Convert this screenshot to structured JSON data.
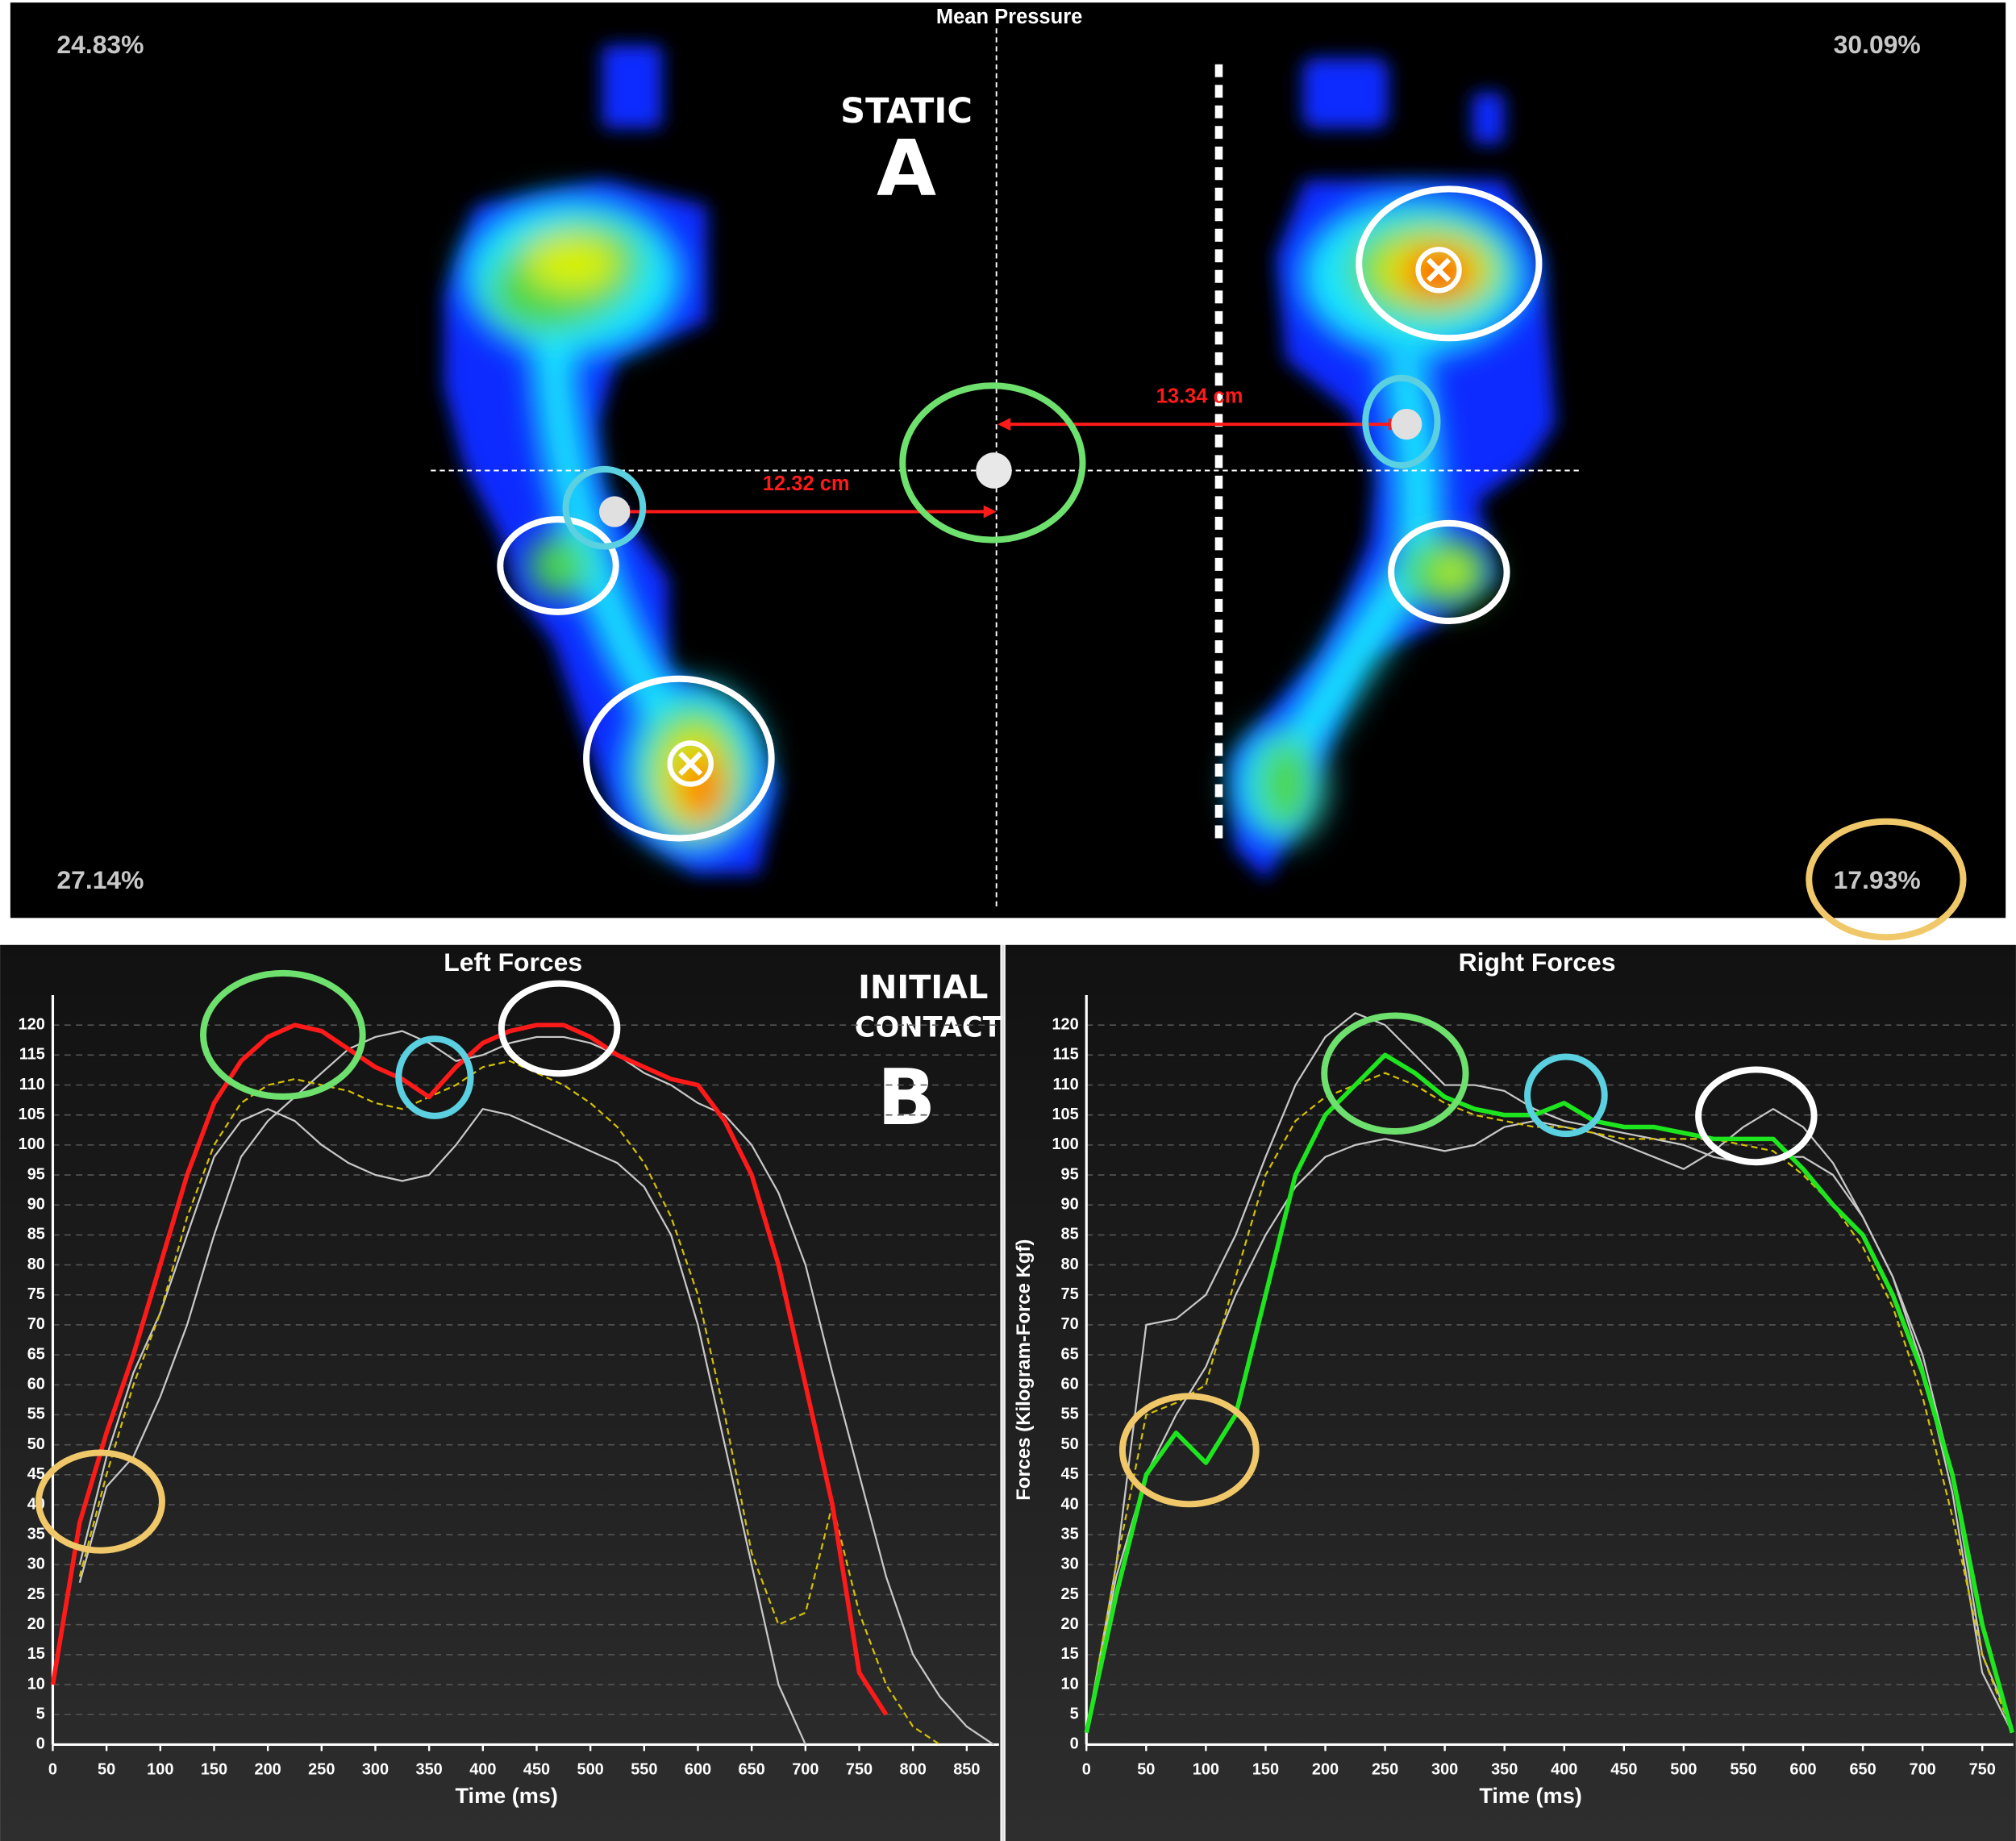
{
  "pressure_map": {
    "title": "Mean Pressure",
    "label": "STATIC",
    "letter": "A",
    "corners": {
      "top_left": "24.83%",
      "top_right": "30.09%",
      "bottom_left": "27.14%",
      "bottom_right": "17.93%"
    },
    "distances": {
      "left": "12.32 cm",
      "right": "13.34 cm"
    }
  },
  "section_b": {
    "caption_lines": [
      "INITIAL",
      "CONTACT"
    ],
    "letter": "B"
  },
  "chart_data": [
    {
      "type": "line",
      "title": "Left Forces",
      "x_label": "Time (ms)",
      "x": [
        0,
        25,
        50,
        75,
        100,
        125,
        150,
        175,
        200,
        225,
        250,
        275,
        300,
        325,
        350,
        375,
        400,
        425,
        450,
        475,
        500,
        525,
        550,
        575,
        600,
        625,
        650,
        675,
        700,
        725,
        750,
        775,
        800,
        825,
        850,
        875
      ],
      "series": [
        {
          "color": "#c8c8c8",
          "line_style": "solid",
          "values": [
            null,
            27,
            43,
            48,
            58,
            70,
            85,
            98,
            104,
            108,
            112,
            116,
            118,
            119,
            117,
            114,
            115,
            117,
            118,
            118,
            117,
            115,
            112,
            110,
            107,
            105,
            100,
            92,
            80,
            62,
            45,
            28,
            15,
            8,
            3,
            0
          ]
        },
        {
          "color": "#c8c8c8",
          "line_style": "solid",
          "values": [
            null,
            30,
            48,
            62,
            72,
            85,
            98,
            104,
            106,
            104,
            100,
            97,
            95,
            94,
            95,
            100,
            106,
            105,
            103,
            101,
            99,
            97,
            93,
            85,
            70,
            50,
            30,
            10,
            0,
            null,
            null,
            null,
            null,
            null,
            null,
            null
          ]
        },
        {
          "color": "#d4c000",
          "line_style": "dashed",
          "values": [
            null,
            28,
            45,
            60,
            72,
            88,
            100,
            107,
            110,
            111,
            110,
            109,
            107,
            106,
            108,
            110,
            113,
            114,
            112,
            110,
            107,
            103,
            97,
            88,
            75,
            55,
            32,
            20,
            22,
            40,
            22,
            10,
            3,
            0,
            null,
            null
          ]
        },
        {
          "color": "#ff1a1a",
          "line_style": "solid",
          "values": [
            10,
            37,
            52,
            65,
            80,
            95,
            107,
            114,
            118,
            120,
            119,
            116,
            113,
            111,
            108,
            113,
            117,
            119,
            120,
            120,
            118,
            115,
            113,
            111,
            110,
            104,
            95,
            80,
            60,
            40,
            12,
            5,
            null,
            null,
            null,
            null
          ]
        }
      ],
      "xlim": [
        0,
        880
      ],
      "xticks": [
        0,
        50,
        100,
        150,
        200,
        250,
        300,
        350,
        400,
        450,
        500,
        550,
        600,
        650,
        700,
        750,
        800,
        850
      ],
      "ylim": [
        0,
        125
      ],
      "yticks": [
        0,
        5,
        10,
        15,
        20,
        25,
        30,
        35,
        40,
        45,
        50,
        55,
        60,
        65,
        70,
        75,
        80,
        85,
        90,
        95,
        100,
        105,
        110,
        115,
        120
      ],
      "grid": true
    },
    {
      "type": "line",
      "title": "Right Forces",
      "x_label": "Time (ms)",
      "y_label": "Forces (Kilogram-Force Kgf)",
      "x": [
        0,
        25,
        50,
        75,
        100,
        125,
        150,
        175,
        200,
        225,
        250,
        275,
        300,
        325,
        350,
        375,
        400,
        425,
        450,
        475,
        500,
        525,
        550,
        575,
        600,
        625,
        650,
        675,
        700,
        725,
        750,
        775
      ],
      "series": [
        {
          "color": "#c8c8c8",
          "line_style": "solid",
          "values": [
            2,
            30,
            70,
            71,
            75,
            85,
            98,
            110,
            118,
            122,
            120,
            115,
            110,
            110,
            109,
            106,
            104,
            103,
            102,
            101,
            100,
            98,
            97,
            98,
            98,
            95,
            88,
            78,
            65,
            45,
            15,
            3
          ]
        },
        {
          "color": "#c8c8c8",
          "line_style": "solid",
          "values": [
            2,
            28,
            45,
            55,
            63,
            75,
            85,
            93,
            98,
            100,
            101,
            100,
            99,
            100,
            103,
            104,
            103,
            102,
            100,
            98,
            96,
            99,
            103,
            106,
            103,
            97,
            88,
            78,
            63,
            42,
            12,
            2
          ]
        },
        {
          "color": "#d4c000",
          "line_style": "dashed",
          "values": [
            2,
            30,
            55,
            57,
            60,
            78,
            95,
            104,
            108,
            110,
            112,
            110,
            107,
            105,
            104,
            103,
            103,
            102,
            101,
            101,
            101,
            101,
            100,
            99,
            95,
            90,
            83,
            73,
            58,
            38,
            15,
            2
          ]
        },
        {
          "color": "#1ee61e",
          "line_style": "solid",
          "values": [
            2,
            25,
            45,
            52,
            47,
            55,
            75,
            95,
            105,
            110,
            115,
            112,
            108,
            106,
            105,
            105,
            107,
            104,
            103,
            103,
            102,
            101,
            101,
            101,
            96,
            90,
            85,
            75,
            62,
            45,
            20,
            2
          ]
        }
      ],
      "xlim": [
        0,
        776
      ],
      "xticks": [
        0,
        50,
        100,
        150,
        200,
        250,
        300,
        350,
        400,
        450,
        500,
        550,
        600,
        650,
        700,
        750
      ],
      "ylim": [
        0,
        125
      ],
      "yticks": [
        0,
        5,
        10,
        15,
        20,
        25,
        30,
        35,
        40,
        45,
        50,
        55,
        60,
        65,
        70,
        75,
        80,
        85,
        90,
        95,
        100,
        105,
        110,
        115,
        120
      ],
      "grid": true
    }
  ]
}
